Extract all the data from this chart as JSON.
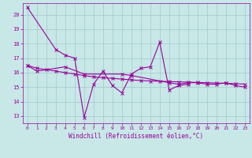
{
  "x": [
    0,
    1,
    2,
    3,
    4,
    5,
    6,
    7,
    8,
    9,
    10,
    11,
    12,
    13,
    14,
    15,
    16,
    17,
    18,
    19,
    20,
    21,
    22,
    23
  ],
  "series1": [
    20.5,
    null,
    null,
    17.6,
    17.2,
    17.0,
    12.9,
    15.2,
    16.1,
    15.1,
    14.6,
    15.9,
    16.3,
    16.4,
    18.1,
    14.8,
    15.1,
    15.2,
    null,
    null,
    null,
    null,
    null,
    null
  ],
  "series2": [
    16.5,
    16.1,
    null,
    null,
    16.4,
    null,
    15.9,
    null,
    null,
    null,
    15.9,
    15.8,
    null,
    null,
    null,
    15.3,
    15.2,
    15.3,
    15.3,
    15.2,
    15.2,
    15.3,
    15.1,
    15.0
  ],
  "trend": [
    16.5,
    16.3,
    16.2,
    16.1,
    16.0,
    15.9,
    15.8,
    15.7,
    15.65,
    15.6,
    15.55,
    15.5,
    15.45,
    15.42,
    15.4,
    15.38,
    15.36,
    15.34,
    15.32,
    15.3,
    15.28,
    15.26,
    15.24,
    15.2
  ],
  "line_color": "#990099",
  "bg_color": "#c8e8e8",
  "grid_color": "#a0c8c8",
  "xlabel": "Windchill (Refroidissement éolien,°C)",
  "ylim": [
    12.5,
    20.8
  ],
  "xlim": [
    -0.5,
    23.5
  ],
  "yticks": [
    13,
    14,
    15,
    16,
    17,
    18,
    19,
    20
  ],
  "xticks": [
    0,
    1,
    2,
    3,
    4,
    5,
    6,
    7,
    8,
    9,
    10,
    11,
    12,
    13,
    14,
    15,
    16,
    17,
    18,
    19,
    20,
    21,
    22,
    23
  ]
}
